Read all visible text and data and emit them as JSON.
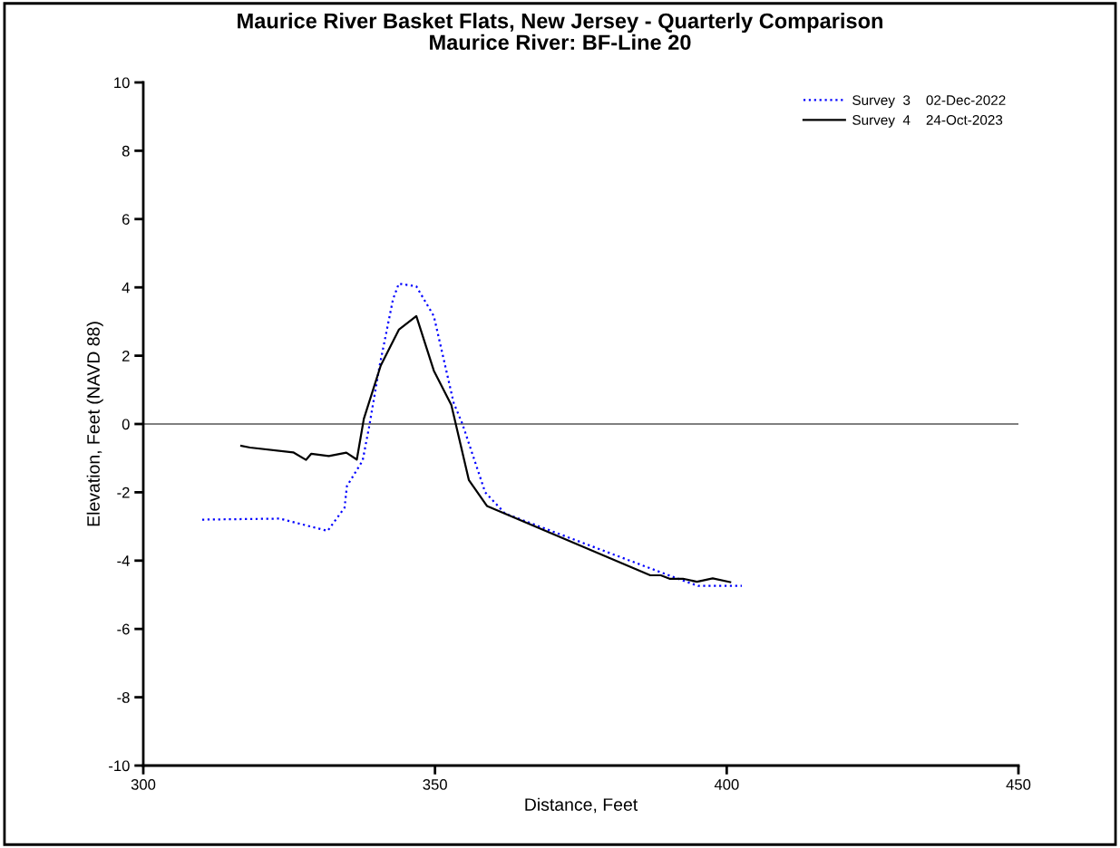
{
  "chart_data": {
    "type": "line",
    "title": "Maurice River Basket Flats, New Jersey - Quarterly Comparison\nMaurice River: BF-Line 20",
    "xlabel": "Distance, Feet",
    "ylabel": "Elevation, Feet (NAVD 88)",
    "xlim": [
      300,
      450
    ],
    "xticks": [
      300,
      350,
      400,
      450
    ],
    "ylim": [
      -10,
      10
    ],
    "yticks": [
      -10,
      -8,
      -6,
      -4,
      -2,
      0,
      2,
      4,
      6,
      8,
      10
    ],
    "grid": false,
    "legend": "top right",
    "marker": "none",
    "ref_lines": [
      {
        "axis": "y",
        "value": 0,
        "color": "#555555"
      }
    ],
    "series": [
      {
        "name": "Survey  3    02-Dec-2022",
        "color": "#0000ff",
        "line_style": "dotted",
        "x": [
          310.1,
          323.4,
          331.6,
          334.5,
          334.9,
          337.6,
          338.7,
          340.5,
          342.8,
          343.8,
          346.8,
          349.8,
          353.2,
          354.7,
          358.6,
          362.0,
          391.0,
          395.1,
          402.6
        ],
        "values": [
          -2.8,
          -2.77,
          -3.13,
          -2.45,
          -1.82,
          -1.07,
          -0.09,
          1.7,
          3.65,
          4.11,
          4.03,
          3.16,
          0.62,
          0.0,
          -2.0,
          -2.62,
          -4.49,
          -4.74,
          -4.74
        ]
      },
      {
        "name": "Survey  4    24-Oct-2023",
        "color": "#000000",
        "line_style": "solid",
        "x": [
          316.8,
          318.3,
          325.7,
          327.9,
          328.8,
          331.8,
          334.8,
          336.6,
          337.8,
          340.7,
          343.8,
          346.8,
          349.8,
          352.8,
          355.8,
          358.9,
          386.9,
          388.7,
          390.2,
          392.5,
          394.9,
          397.6,
          400.6
        ],
        "values": [
          -0.64,
          -0.69,
          -0.83,
          -1.05,
          -0.87,
          -0.94,
          -0.84,
          -1.04,
          0.15,
          1.71,
          2.76,
          3.16,
          1.56,
          0.56,
          -1.64,
          -2.4,
          -4.43,
          -4.43,
          -4.53,
          -4.53,
          -4.62,
          -4.52,
          -4.63
        ]
      }
    ]
  }
}
